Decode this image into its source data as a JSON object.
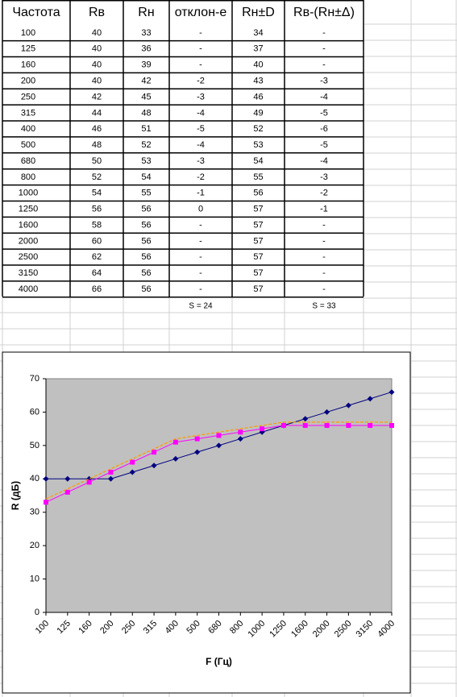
{
  "table": {
    "header": [
      "Частота",
      "Rв",
      "Rн",
      "отклон-е",
      "Rн±D",
      "Rв-(Rн±Δ)"
    ],
    "rows": [
      [
        100,
        40,
        33,
        "-",
        34,
        "-"
      ],
      [
        125,
        40,
        36,
        "-",
        37,
        "-"
      ],
      [
        160,
        40,
        39,
        "-",
        40,
        "-"
      ],
      [
        200,
        40,
        42,
        -2,
        43,
        -3
      ],
      [
        250,
        42,
        45,
        -3,
        46,
        -4
      ],
      [
        315,
        44,
        48,
        -4,
        49,
        -5
      ],
      [
        400,
        46,
        51,
        -5,
        52,
        -6
      ],
      [
        500,
        48,
        52,
        -4,
        53,
        -5
      ],
      [
        680,
        50,
        53,
        -3,
        54,
        -4
      ],
      [
        800,
        52,
        54,
        -2,
        55,
        -3
      ],
      [
        1000,
        54,
        55,
        -1,
        56,
        -2
      ],
      [
        1250,
        56,
        56,
        0,
        57,
        -1
      ],
      [
        1600,
        58,
        56,
        "-",
        57,
        "-"
      ],
      [
        2000,
        60,
        56,
        "-",
        57,
        "-"
      ],
      [
        2500,
        62,
        56,
        "-",
        57,
        "-"
      ],
      [
        3150,
        64,
        56,
        "-",
        57,
        "-"
      ],
      [
        4000,
        66,
        56,
        "-",
        57,
        "-"
      ]
    ],
    "sums": [
      "S = 24",
      "S = 33"
    ]
  },
  "chart_data": {
    "type": "line",
    "x_label": "F (Гц)",
    "y_label": "R (дБ)",
    "categories": [
      100,
      125,
      160,
      200,
      250,
      315,
      400,
      500,
      680,
      800,
      1000,
      1250,
      1600,
      2000,
      2500,
      3150,
      4000
    ],
    "series": [
      {
        "color": "#000080",
        "marker": "diamond",
        "values": [
          40,
          40,
          40,
          40,
          42,
          44,
          46,
          48,
          50,
          52,
          54,
          56,
          58,
          60,
          62,
          64,
          66
        ]
      },
      {
        "color": "#ff00ff",
        "marker": "square",
        "values": [
          33,
          36,
          39,
          42,
          45,
          48,
          51,
          52,
          53,
          54,
          55,
          56,
          56,
          56,
          56,
          56,
          56
        ]
      },
      {
        "color": "#ff9900",
        "dashed": true,
        "values": [
          34,
          37,
          40,
          43,
          46,
          49,
          52,
          53,
          54,
          55,
          56,
          57,
          57,
          57,
          57,
          57,
          57
        ]
      }
    ],
    "ylim": [
      0,
      70
    ],
    "yticks": [
      0,
      10,
      20,
      30,
      40,
      50,
      60,
      70
    ]
  }
}
